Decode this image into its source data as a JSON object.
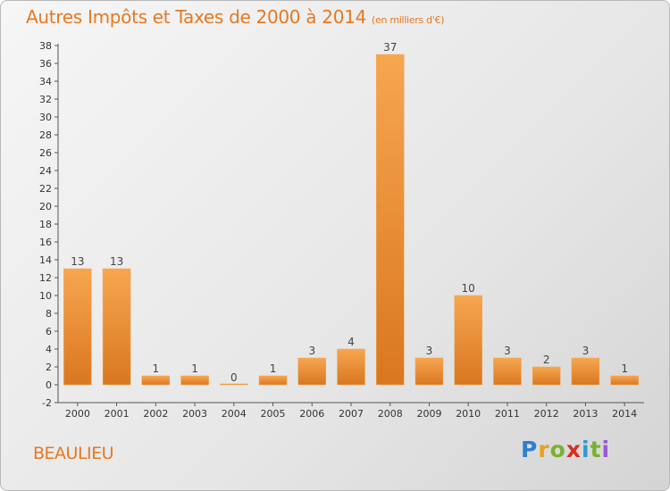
{
  "title": "Autres Impôts et Taxes de 2000 à 2014",
  "unit": "(en milliers d'€)",
  "place": "BEAULIEU",
  "logo": [
    "P",
    "r",
    "o",
    "x",
    "i",
    "t",
    "i"
  ],
  "colors": {
    "bar_light": "#f7a650",
    "bar_dark": "#d97720",
    "accent": "#e87820"
  },
  "chart_data": {
    "type": "bar",
    "categories": [
      "2000",
      "2001",
      "2002",
      "2003",
      "2004",
      "2005",
      "2006",
      "2007",
      "2008",
      "2009",
      "2010",
      "2011",
      "2012",
      "2013",
      "2014"
    ],
    "values": [
      13,
      13,
      1,
      1,
      0,
      1,
      3,
      4,
      37,
      3,
      10,
      3,
      2,
      3,
      1
    ],
    "ylim": [
      -2,
      38
    ],
    "yticks": [
      -2,
      0,
      2,
      4,
      6,
      8,
      10,
      12,
      14,
      16,
      18,
      20,
      22,
      24,
      26,
      28,
      30,
      32,
      34,
      36,
      38
    ],
    "grid": false,
    "legend": "none"
  }
}
